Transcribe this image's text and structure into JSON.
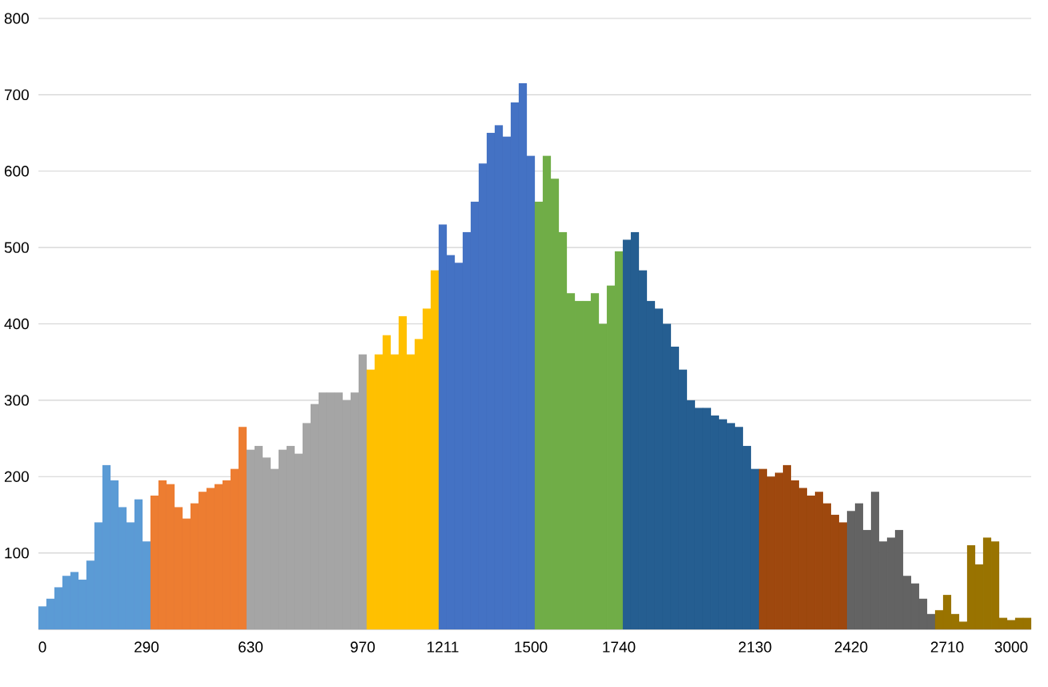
{
  "chart_data": {
    "type": "bar",
    "categories": [
      "0",
      null,
      null,
      null,
      null,
      null,
      null,
      null,
      null,
      null,
      null,
      null,
      null,
      "290",
      null,
      null,
      null,
      null,
      null,
      null,
      null,
      null,
      null,
      null,
      null,
      null,
      "630",
      null,
      null,
      null,
      null,
      null,
      null,
      null,
      null,
      null,
      null,
      null,
      null,
      null,
      "970",
      null,
      null,
      null,
      null,
      null,
      null,
      null,
      null,
      null,
      "1211",
      null,
      null,
      null,
      null,
      null,
      null,
      null,
      null,
      null,
      null,
      "1500",
      null,
      null,
      null,
      null,
      null,
      null,
      null,
      null,
      null,
      null,
      "1740",
      null,
      null,
      null,
      null,
      null,
      null,
      null,
      null,
      null,
      null,
      null,
      null,
      null,
      null,
      null,
      null,
      "2130",
      null,
      null,
      null,
      null,
      null,
      null,
      null,
      null,
      null,
      null,
      null,
      "2420",
      null,
      null,
      null,
      null,
      null,
      null,
      null,
      null,
      null,
      null,
      null,
      "2710",
      null,
      null,
      null,
      null,
      null,
      null,
      null,
      "3000",
      null,
      null
    ],
    "values": [
      30,
      40,
      55,
      70,
      75,
      65,
      90,
      140,
      215,
      195,
      160,
      140,
      170,
      115,
      175,
      195,
      190,
      160,
      145,
      165,
      180,
      185,
      190,
      195,
      210,
      265,
      235,
      240,
      225,
      210,
      235,
      240,
      230,
      270,
      295,
      310,
      310,
      310,
      300,
      310,
      360,
      340,
      360,
      385,
      360,
      410,
      360,
      380,
      420,
      470,
      530,
      490,
      480,
      520,
      560,
      610,
      650,
      660,
      645,
      690,
      715,
      620,
      560,
      620,
      590,
      520,
      440,
      430,
      430,
      440,
      400,
      450,
      495,
      510,
      520,
      470,
      430,
      420,
      400,
      370,
      340,
      300,
      290,
      290,
      280,
      275,
      270,
      265,
      240,
      210,
      210,
      200,
      205,
      215,
      195,
      185,
      175,
      180,
      165,
      150,
      140,
      155,
      165,
      130,
      180,
      115,
      120,
      130,
      70,
      60,
      40,
      20,
      25,
      45,
      20,
      10,
      110,
      85,
      120,
      115,
      15,
      12,
      15,
      15
    ],
    "colors": [
      "#5b9bd5",
      "#5b9bd5",
      "#5b9bd5",
      "#5b9bd5",
      "#5b9bd5",
      "#5b9bd5",
      "#5b9bd5",
      "#5b9bd5",
      "#5b9bd5",
      "#5b9bd5",
      "#5b9bd5",
      "#5b9bd5",
      "#5b9bd5",
      "#5b9bd5",
      "#ed7d31",
      "#ed7d31",
      "#ed7d31",
      "#ed7d31",
      "#ed7d31",
      "#ed7d31",
      "#ed7d31",
      "#ed7d31",
      "#ed7d31",
      "#ed7d31",
      "#ed7d31",
      "#ed7d31",
      "#a5a5a5",
      "#a5a5a5",
      "#a5a5a5",
      "#a5a5a5",
      "#a5a5a5",
      "#a5a5a5",
      "#a5a5a5",
      "#a5a5a5",
      "#a5a5a5",
      "#a5a5a5",
      "#a5a5a5",
      "#a5a5a5",
      "#a5a5a5",
      "#a5a5a5",
      "#a5a5a5",
      "#ffc000",
      "#ffc000",
      "#ffc000",
      "#ffc000",
      "#ffc000",
      "#ffc000",
      "#ffc000",
      "#ffc000",
      "#ffc000",
      "#4472c4",
      "#4472c4",
      "#4472c4",
      "#4472c4",
      "#4472c4",
      "#4472c4",
      "#4472c4",
      "#4472c4",
      "#4472c4",
      "#4472c4",
      "#4472c4",
      "#4472c4",
      "#70ad47",
      "#70ad47",
      "#70ad47",
      "#70ad47",
      "#70ad47",
      "#70ad47",
      "#70ad47",
      "#70ad47",
      "#70ad47",
      "#70ad47",
      "#70ad47",
      "#255e91",
      "#255e91",
      "#255e91",
      "#255e91",
      "#255e91",
      "#255e91",
      "#255e91",
      "#255e91",
      "#255e91",
      "#255e91",
      "#255e91",
      "#255e91",
      "#255e91",
      "#255e91",
      "#255e91",
      "#255e91",
      "#255e91",
      "#9e480e",
      "#9e480e",
      "#9e480e",
      "#9e480e",
      "#9e480e",
      "#9e480e",
      "#9e480e",
      "#9e480e",
      "#9e480e",
      "#9e480e",
      "#9e480e",
      "#636363",
      "#636363",
      "#636363",
      "#636363",
      "#636363",
      "#636363",
      "#636363",
      "#636363",
      "#636363",
      "#636363",
      "#636363",
      "#997300",
      "#997300",
      "#997300",
      "#997300",
      "#997300",
      "#997300",
      "#997300",
      "#997300",
      "#997300",
      "#997300",
      "#997300",
      "#997300"
    ],
    "ylim": [
      0,
      800
    ],
    "yticks": [
      100,
      200,
      300,
      400,
      500,
      600,
      700,
      800
    ],
    "grid": "y"
  }
}
